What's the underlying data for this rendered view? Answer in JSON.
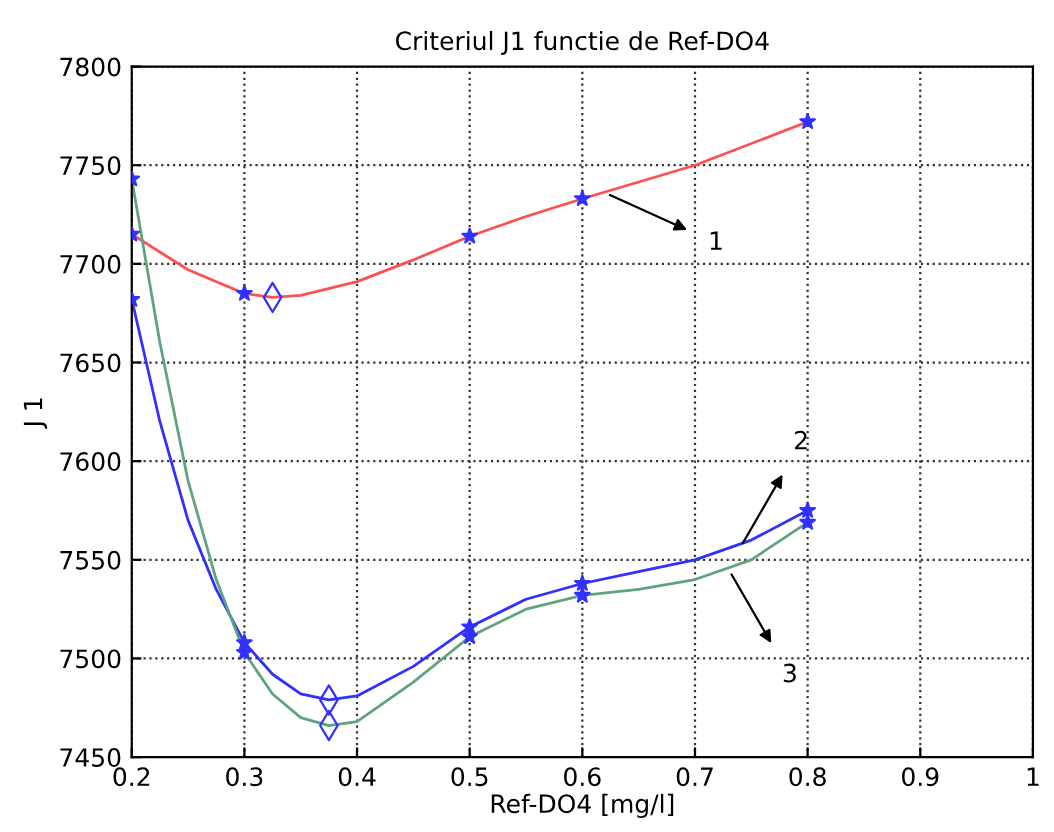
{
  "chart_data": {
    "type": "line",
    "title": "Criteriul J1 functie de Ref-DO4",
    "xlabel": "Ref-DO4 [mg/l]",
    "ylabel": "J 1",
    "xlim": [
      0.2,
      1
    ],
    "xticks": [
      0.2,
      0.3,
      0.4,
      0.5,
      0.6,
      0.7,
      0.8,
      0.9,
      1
    ],
    "ylim": [
      7450,
      7800
    ],
    "yticks": [
      7450,
      7500,
      7550,
      7600,
      7650,
      7700,
      7750,
      7800
    ],
    "grid": true,
    "line_style": "solid",
    "series": [
      {
        "color": "#ff5050",
        "x": [
          0.2,
          0.25,
          0.3,
          0.325,
          0.35,
          0.4,
          0.45,
          0.5,
          0.55,
          0.6,
          0.7,
          0.8
        ],
        "values": [
          7715,
          7697,
          7685,
          7683,
          7684,
          7691,
          7702,
          7714,
          7724,
          7733,
          7750,
          7772
        ]
      },
      {
        "color": "#3030ff",
        "x": [
          0.2,
          0.225,
          0.25,
          0.275,
          0.3,
          0.325,
          0.35,
          0.375,
          0.4,
          0.45,
          0.5,
          0.55,
          0.6,
          0.65,
          0.7,
          0.75,
          0.8
        ],
        "values": [
          7682,
          7620,
          7570,
          7535,
          7508,
          7492,
          7482,
          7479,
          7481,
          7496,
          7516,
          7530,
          7538,
          7544,
          7550,
          7560,
          7575
        ]
      },
      {
        "color": "#5fa37f",
        "x": [
          0.2,
          0.225,
          0.25,
          0.275,
          0.3,
          0.325,
          0.35,
          0.375,
          0.4,
          0.45,
          0.5,
          0.55,
          0.6,
          0.65,
          0.7,
          0.75,
          0.8
        ],
        "values": [
          7743,
          7660,
          7590,
          7540,
          7503,
          7482,
          7470,
          7466,
          7468,
          7488,
          7511,
          7525,
          7532,
          7535,
          7540,
          7550,
          7569
        ]
      },
      {
        "type": "scatter",
        "marker": "star",
        "color": "#3030ff",
        "x": [
          0.2,
          0.3,
          0.5,
          0.6,
          0.8,
          0.2,
          0.3,
          0.5,
          0.6,
          0.8,
          0.2,
          0.3,
          0.5,
          0.6,
          0.8
        ],
        "values": [
          7715,
          7685,
          7714,
          7733,
          7772,
          7682,
          7508,
          7516,
          7538,
          7575,
          7743,
          7503,
          7511,
          7532,
          7569
        ]
      },
      {
        "type": "scatter",
        "marker": "diamond",
        "color": "#3030ff",
        "x": [
          0.325,
          0.375,
          0.375
        ],
        "values": [
          7683,
          7479,
          7466
        ]
      }
    ],
    "annotations": [
      {
        "text": "1",
        "x": 0.62,
        "y": 7736
      },
      {
        "text": "2",
        "x": 0.74,
        "y": 7556
      },
      {
        "text": "3",
        "x": 0.73,
        "y": 7545
      }
    ]
  }
}
